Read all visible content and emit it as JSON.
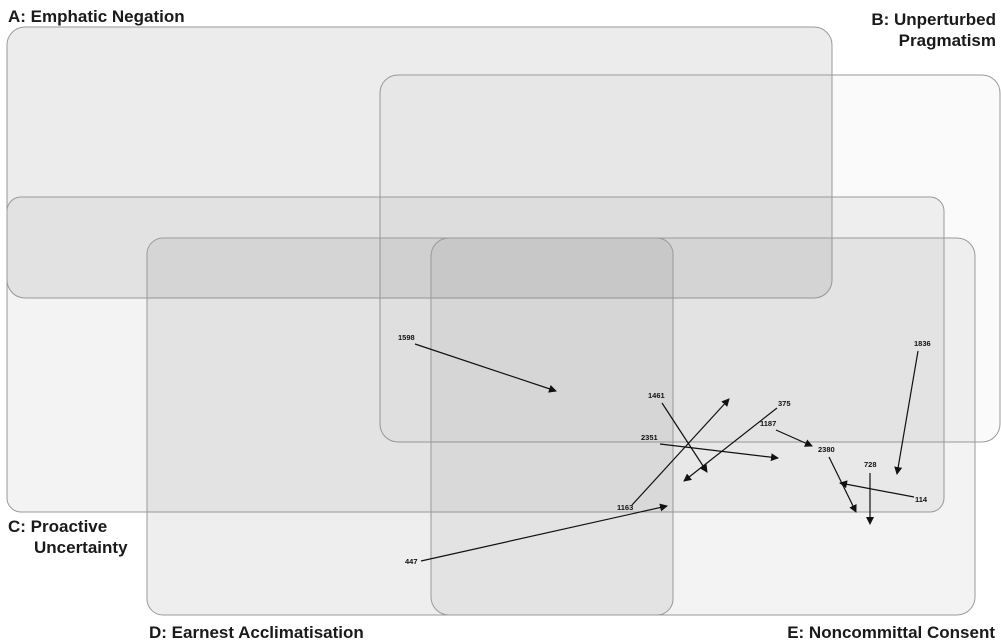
{
  "sets": [
    {
      "id": "A",
      "label": "A: Emphatic Negation"
    },
    {
      "id": "B",
      "label_line1": "B: Unperturbed",
      "label_line2": "Pragmatism"
    },
    {
      "id": "C",
      "label_line1": "C: Proactive",
      "label_line2": "Uncertainty"
    },
    {
      "id": "D",
      "label": "D: Earnest Acclimatisation"
    },
    {
      "id": "E",
      "label": "E: Noncommittal Consent"
    }
  ],
  "arrows": [
    {
      "label": "1598"
    },
    {
      "label": "1836"
    },
    {
      "label": "1461"
    },
    {
      "label": "375"
    },
    {
      "label": "1187"
    },
    {
      "label": "2351"
    },
    {
      "label": "2380"
    },
    {
      "label": "728"
    },
    {
      "label": "114"
    },
    {
      "label": "1163"
    },
    {
      "label": "447"
    }
  ],
  "colors": {
    "region_fill": "#8a8a8a",
    "region_stroke": "#9a9a9a",
    "arrow": "#111111"
  }
}
